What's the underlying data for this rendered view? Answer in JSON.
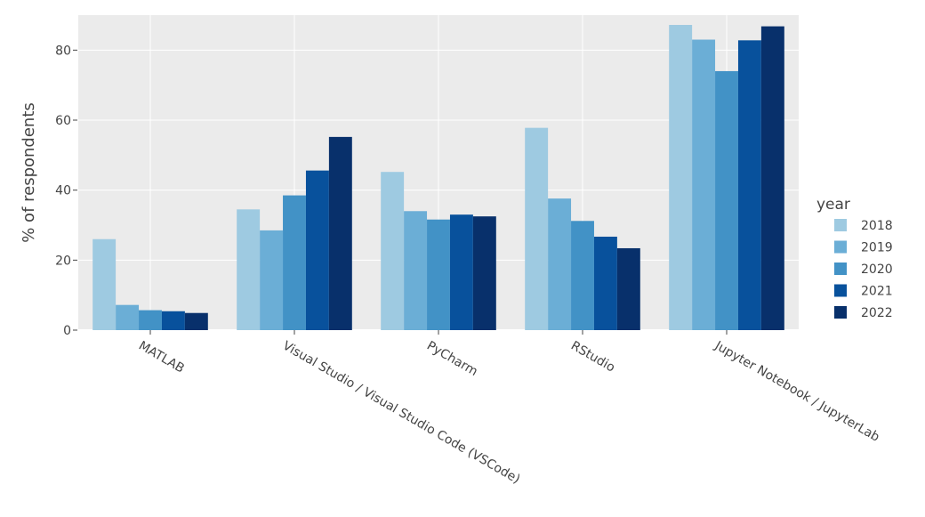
{
  "chart_data": {
    "type": "bar",
    "ylabel": "% of respondents",
    "ylim": [
      0,
      90
    ],
    "yticks": [
      0,
      20,
      40,
      60,
      80
    ],
    "grid": true,
    "legend_title": "year",
    "legend_position": "right",
    "categories": [
      "MATLAB",
      "Visual Studio / Visual Studio Code (VSCode)",
      "PyCharm",
      "RStudio",
      "Jupyter Notebook / JupyterLab"
    ],
    "series": [
      {
        "name": "2018",
        "color": "#9ecae1",
        "values": [
          26.0,
          34.5,
          45.2,
          57.8,
          87.2
        ]
      },
      {
        "name": "2019",
        "color": "#6baed6",
        "values": [
          7.2,
          28.5,
          34.0,
          37.6,
          83.0
        ]
      },
      {
        "name": "2020",
        "color": "#4292c6",
        "values": [
          5.7,
          38.5,
          31.6,
          31.2,
          74.0
        ]
      },
      {
        "name": "2021",
        "color": "#08519c",
        "values": [
          5.4,
          45.6,
          33.0,
          26.7,
          82.8
        ]
      },
      {
        "name": "2022",
        "color": "#08306b",
        "values": [
          4.9,
          55.2,
          32.5,
          23.4,
          86.8
        ]
      }
    ]
  }
}
